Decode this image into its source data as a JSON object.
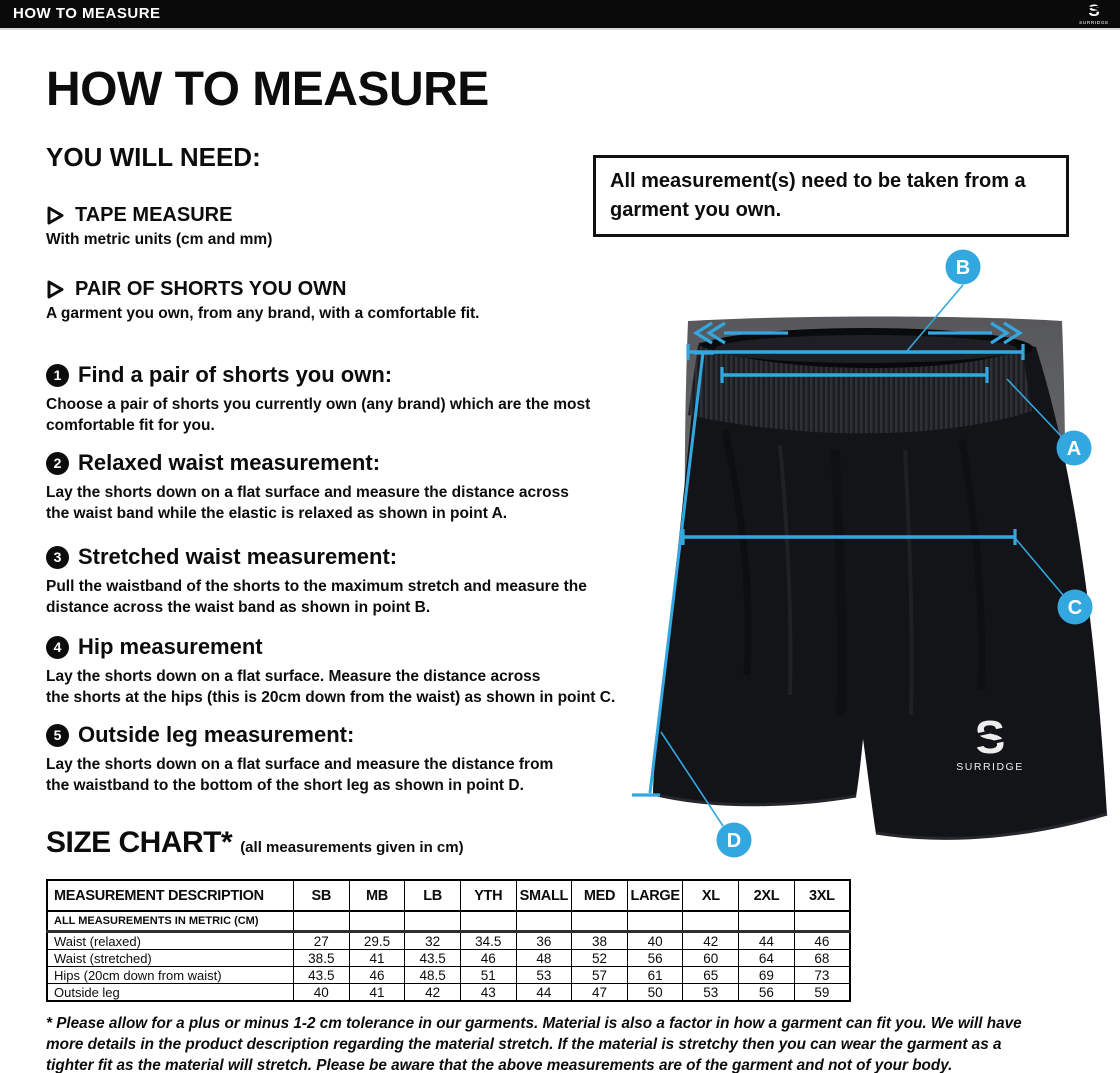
{
  "brand": {
    "mark": "S",
    "name": "SURRIDGE"
  },
  "topbar": {
    "title": "HOW TO MEASURE"
  },
  "page_title": "HOW TO MEASURE",
  "you_will_need": {
    "heading": "YOU WILL NEED:",
    "items": [
      {
        "title": "TAPE MEASURE",
        "desc": "With metric units (cm and mm)"
      },
      {
        "title": "PAIR OF SHORTS YOU OWN",
        "desc": "A garment you own, from any brand, with a comfortable fit."
      }
    ]
  },
  "note": "All measurement(s) need to be taken from a\ngarment you own.",
  "steps": [
    {
      "num": "1",
      "title": "Find a pair of shorts you own:",
      "desc": "Choose a pair of shorts you currently own (any brand) which are the most\ncomfortable fit for you."
    },
    {
      "num": "2",
      "title": "Relaxed waist measurement:",
      "desc": "Lay the shorts down on a flat surface and measure the distance across\nthe waist band while the elastic is relaxed as shown in point A."
    },
    {
      "num": "3",
      "title": "Stretched waist measurement:",
      "desc": "Pull the waistband of the shorts to the maximum stretch and measure the\ndistance across the waist band as shown in point B."
    },
    {
      "num": "4",
      "title": "Hip measurement",
      "desc": "Lay the shorts down on a flat surface. Measure the distance across\nthe shorts at the hips (this is 20cm down from the waist)  as shown in point C."
    },
    {
      "num": "5",
      "title": "Outside leg measurement:",
      "desc": "Lay the shorts down on a flat surface and measure the distance from\nthe waistband to the bottom of the short leg as shown in point D."
    }
  ],
  "figure": {
    "accent": "#33a7e0",
    "labels": {
      "a": "A",
      "b": "B",
      "c": "C",
      "d": "D"
    }
  },
  "size_chart": {
    "title": "SIZE CHART*",
    "subtitle": "(all measurements given in cm)",
    "columns": [
      "MEASUREMENT DESCRIPTION",
      "SB",
      "MB",
      "LB",
      "YTH",
      "SMALL",
      "MED",
      "LARGE",
      "XL",
      "2XL",
      "3XL"
    ],
    "metric_note": "ALL MEASUREMENTS IN METRIC (CM)",
    "rows": [
      {
        "label": "Waist (relaxed)",
        "values": [
          "27",
          "29.5",
          "32",
          "34.5",
          "36",
          "38",
          "40",
          "42",
          "44",
          "46"
        ]
      },
      {
        "label": "Waist (stretched)",
        "values": [
          "38.5",
          "41",
          "43.5",
          "46",
          "48",
          "52",
          "56",
          "60",
          "64",
          "68"
        ]
      },
      {
        "label": "Hips (20cm down from waist)",
        "values": [
          "43.5",
          "46",
          "48.5",
          "51",
          "53",
          "57",
          "61",
          "65",
          "69",
          "73"
        ]
      },
      {
        "label": "Outside leg",
        "values": [
          "40",
          "41",
          "42",
          "43",
          "44",
          "47",
          "50",
          "53",
          "56",
          "59"
        ]
      }
    ]
  },
  "footnote": "* Please allow for a plus or minus 1-2 cm tolerance in our garments. Material is also a factor in how a garment can fit you. We will have\nmore details in the product description regarding the material stretch.  If the material is stretchy then you can wear the garment as a\ntighter fit as the material will stretch.  Please be aware that the above measurements are of the garment and not of your body."
}
